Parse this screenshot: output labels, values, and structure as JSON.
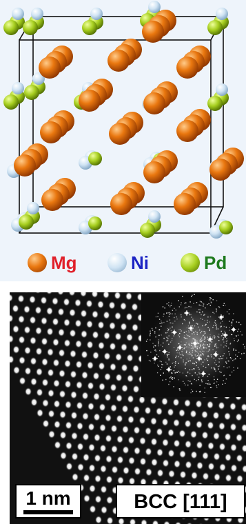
{
  "legend": {
    "items": [
      {
        "element": "Mg",
        "color": "#e0650e",
        "label_color": "#e0202a"
      },
      {
        "element": "Ni",
        "color": "#bcd7ec",
        "label_color": "#1c23c4"
      },
      {
        "element": "Pd",
        "color": "#9bc31c",
        "label_color": "#1e7a1e"
      }
    ]
  },
  "stem_image": {
    "scale_bar_label": "1 nm",
    "phase_label": "BCC [111]"
  }
}
